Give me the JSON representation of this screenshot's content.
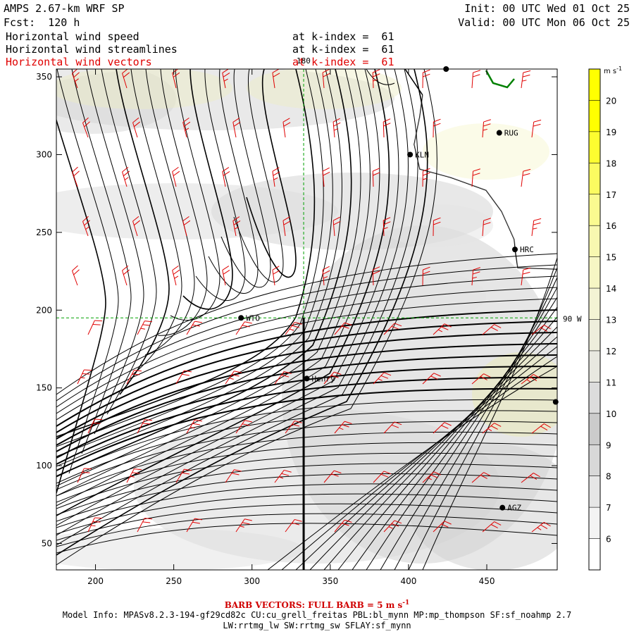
{
  "header": {
    "title": "AMPS 2.67-km WRF SP",
    "fcst": "Fcst:  120 h",
    "init": "Init: 00 UTC Wed 01 Oct 25",
    "valid": "Valid: 00 UTC Mon 06 Oct 25",
    "fields": [
      {
        "name": "Horizontal wind speed",
        "level": "at k-index =  61",
        "color": "#000000"
      },
      {
        "name": "Horizontal wind streamlines",
        "level": "at k-index =  61",
        "color": "#000000"
      },
      {
        "name": "Horizontal wind vectors",
        "level": "at k-index =  61",
        "color": "#e00000"
      }
    ]
  },
  "chart_data": {
    "type": "heatmap",
    "title": "Horizontal wind speed",
    "xlim": [
      175,
      495
    ],
    "ylim": [
      33,
      355
    ],
    "x_ticks": [
      200,
      250,
      300,
      350,
      400,
      450
    ],
    "y_ticks": [
      50,
      100,
      150,
      200,
      250,
      300,
      350
    ],
    "colorbar": {
      "unit_label": "m s",
      "unit_exp": "-1",
      "levels": [
        6,
        7,
        8,
        9,
        10,
        11,
        12,
        13,
        14,
        15,
        16,
        17,
        18,
        19,
        20
      ],
      "colors": [
        "#ffffff",
        "#f3f3f3",
        "#e6e6e6",
        "#d8d8d8",
        "#cbcbcb",
        "#dcdcdc",
        "#e8e8e0",
        "#eeeedc",
        "#f3f3d4",
        "#f6f6c4",
        "#f8f8b0",
        "#fafa90",
        "#fbfb60",
        "#fdfd30",
        "#ffff00"
      ]
    },
    "grid_lines": {
      "meridian_label": "180",
      "meridian_x": 333,
      "parallel_label": "90 W",
      "parallel_y": 195
    },
    "stations": [
      {
        "name": "RUG",
        "x": 458,
        "y": 314
      },
      {
        "name": "KLN",
        "x": 401,
        "y": 300
      },
      {
        "name": "HRC",
        "x": 468,
        "y": 239
      },
      {
        "name": "WTO",
        "x": 293,
        "y": 195
      },
      {
        "name": "Henry",
        "x": 335,
        "y": 156
      },
      {
        "name": "AGZ",
        "x": 460,
        "y": 73
      },
      {
        "name": "",
        "x": 494,
        "y": 141
      },
      {
        "name": "",
        "x": 424,
        "y": 355
      }
    ],
    "cross_section_line": {
      "x": 333,
      "y0": 33,
      "y1": 195
    },
    "vector_note": "BARB VECTORS: FULL BARB = 5 m s",
    "vector_note_exp": "-1"
  },
  "footer": {
    "line1": "Model Info: MPASv8.2.3-194-gf29cd82c CU:cu_grell_freitas PBL:bl_mynn MP:mp_thompson SF:sf_noahmp 2.7",
    "line2": "LW:rrtmg_lw SW:rrtmg_sw SFLAY:sf_mynn"
  }
}
